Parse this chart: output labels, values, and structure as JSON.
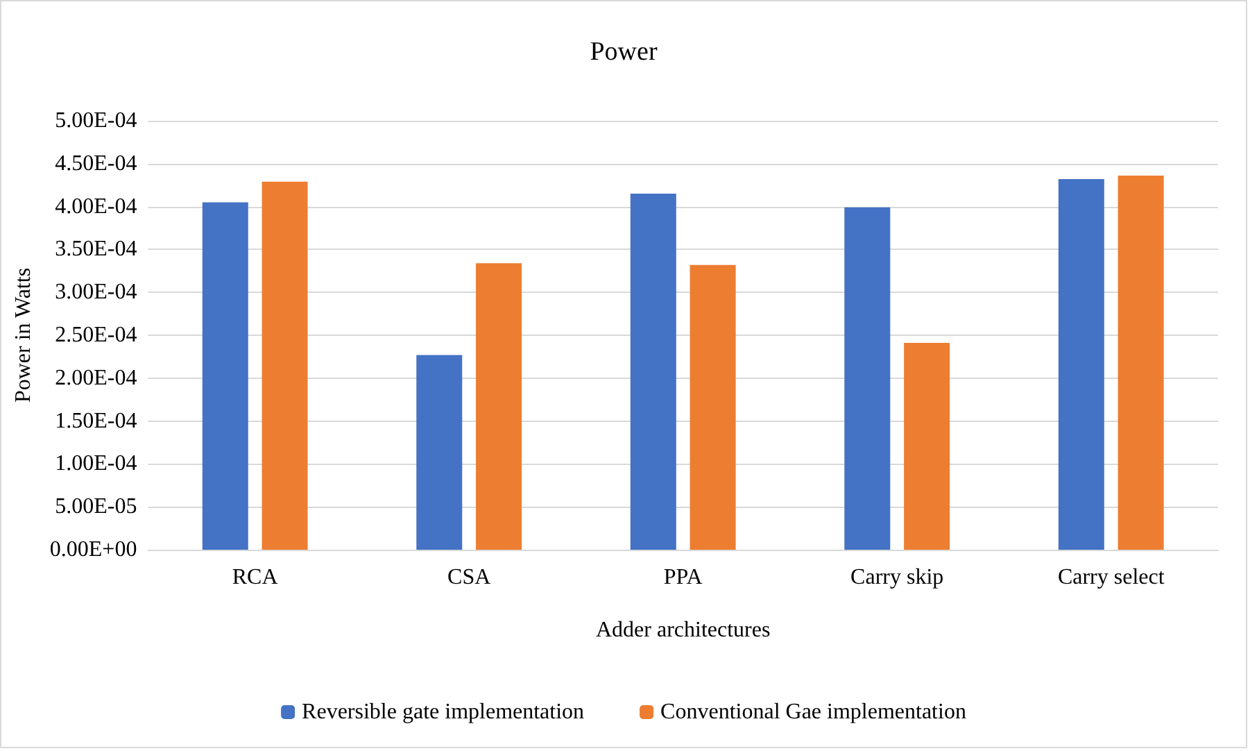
{
  "chart_data": {
    "type": "bar",
    "title": "Power",
    "xlabel": "Adder architectures",
    "ylabel": "Power in Watts",
    "categories": [
      "RCA",
      "CSA",
      "PPA",
      "Carry skip",
      "Carry select"
    ],
    "series": [
      {
        "name": "Reversible gate implementation",
        "color": "#4472c4",
        "values": [
          0.000405,
          0.000227,
          0.000415,
          0.000399,
          0.000432
        ]
      },
      {
        "name": "Conventional Gae implementation",
        "color": "#ed7d31",
        "values": [
          0.000429,
          0.000334,
          0.000332,
          0.000241,
          0.000436
        ]
      }
    ],
    "ylim": [
      0,
      0.0005
    ],
    "yticks": [
      {
        "value": 0,
        "label": "0.00E+00"
      },
      {
        "value": 5e-05,
        "label": "5.00E-05"
      },
      {
        "value": 0.0001,
        "label": "1.00E-04"
      },
      {
        "value": 0.00015,
        "label": "1.50E-04"
      },
      {
        "value": 0.0002,
        "label": "2.00E-04"
      },
      {
        "value": 0.00025,
        "label": "2.50E-04"
      },
      {
        "value": 0.0003,
        "label": "3.00E-04"
      },
      {
        "value": 0.00035,
        "label": "3.50E-04"
      },
      {
        "value": 0.0004,
        "label": "4.00E-04"
      },
      {
        "value": 0.00045,
        "label": "4.50E-04"
      },
      {
        "value": 0.0005,
        "label": "5.00E-04"
      }
    ],
    "grid": "y",
    "legend": "bottom"
  }
}
